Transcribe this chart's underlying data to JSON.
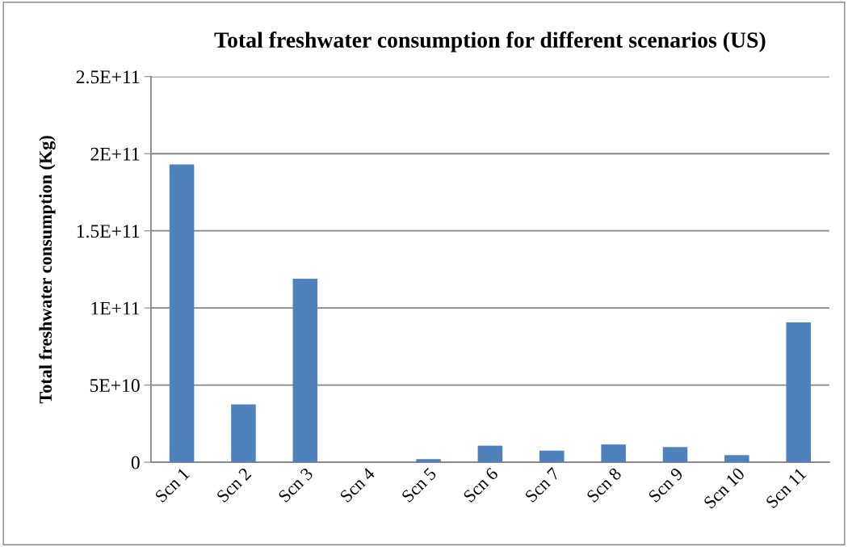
{
  "chart_data": {
    "type": "bar",
    "title": "Total freshwater consumption for different scenarios (US)",
    "ylabel": "Total freshwater consumption (Kg)",
    "categories": [
      "Scn 1",
      "Scn 2",
      "Scn 3",
      "Scn 4",
      "Scn 5",
      "Scn 6",
      "Scn 7",
      "Scn 8",
      "Scn 9",
      "Scn 10",
      "Scn 11"
    ],
    "values": [
      193000000000,
      37500000000,
      119000000000,
      0,
      2000000000,
      10700000000,
      7500000000,
      11500000000,
      9800000000,
      4600000000,
      90600000000
    ],
    "color": "#4f81bd",
    "ylim": [
      0,
      250000000000
    ],
    "yticks": [
      {
        "value": 0,
        "label": "0"
      },
      {
        "value": 50000000000,
        "label": "5E+10"
      },
      {
        "value": 100000000000,
        "label": "1E+11"
      },
      {
        "value": 150000000000,
        "label": "1.5E+11"
      },
      {
        "value": 200000000000,
        "label": "2E+11"
      },
      {
        "value": 250000000000,
        "label": "2.5E+11"
      }
    ],
    "grid": "y"
  }
}
